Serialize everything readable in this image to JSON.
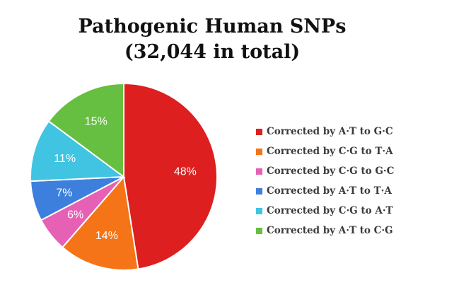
{
  "chart_data": {
    "type": "pie",
    "title": "Pathogenic Human SNPs",
    "subtitle": "(32,044 in total)",
    "legend_position": "right",
    "slices": [
      {
        "label": "Corrected by A·T to G·C",
        "value": 48,
        "display": "48%",
        "color": "#dd1f1f"
      },
      {
        "label": "Corrected by C·G to T·A",
        "value": 14,
        "display": "14%",
        "color": "#f47417"
      },
      {
        "label": "Corrected by C·G to G·C",
        "value": 6,
        "display": "6%",
        "color": "#e661b5"
      },
      {
        "label": "Corrected by A·T to T·A",
        "value": 7,
        "display": "7%",
        "color": "#3d7fdd"
      },
      {
        "label": "Corrected by C·G to A·T",
        "value": 11,
        "display": "11%",
        "color": "#40c4e2"
      },
      {
        "label": "Corrected by A·T to C·G",
        "value": 15,
        "display": "15%",
        "color": "#66bf40"
      }
    ]
  }
}
